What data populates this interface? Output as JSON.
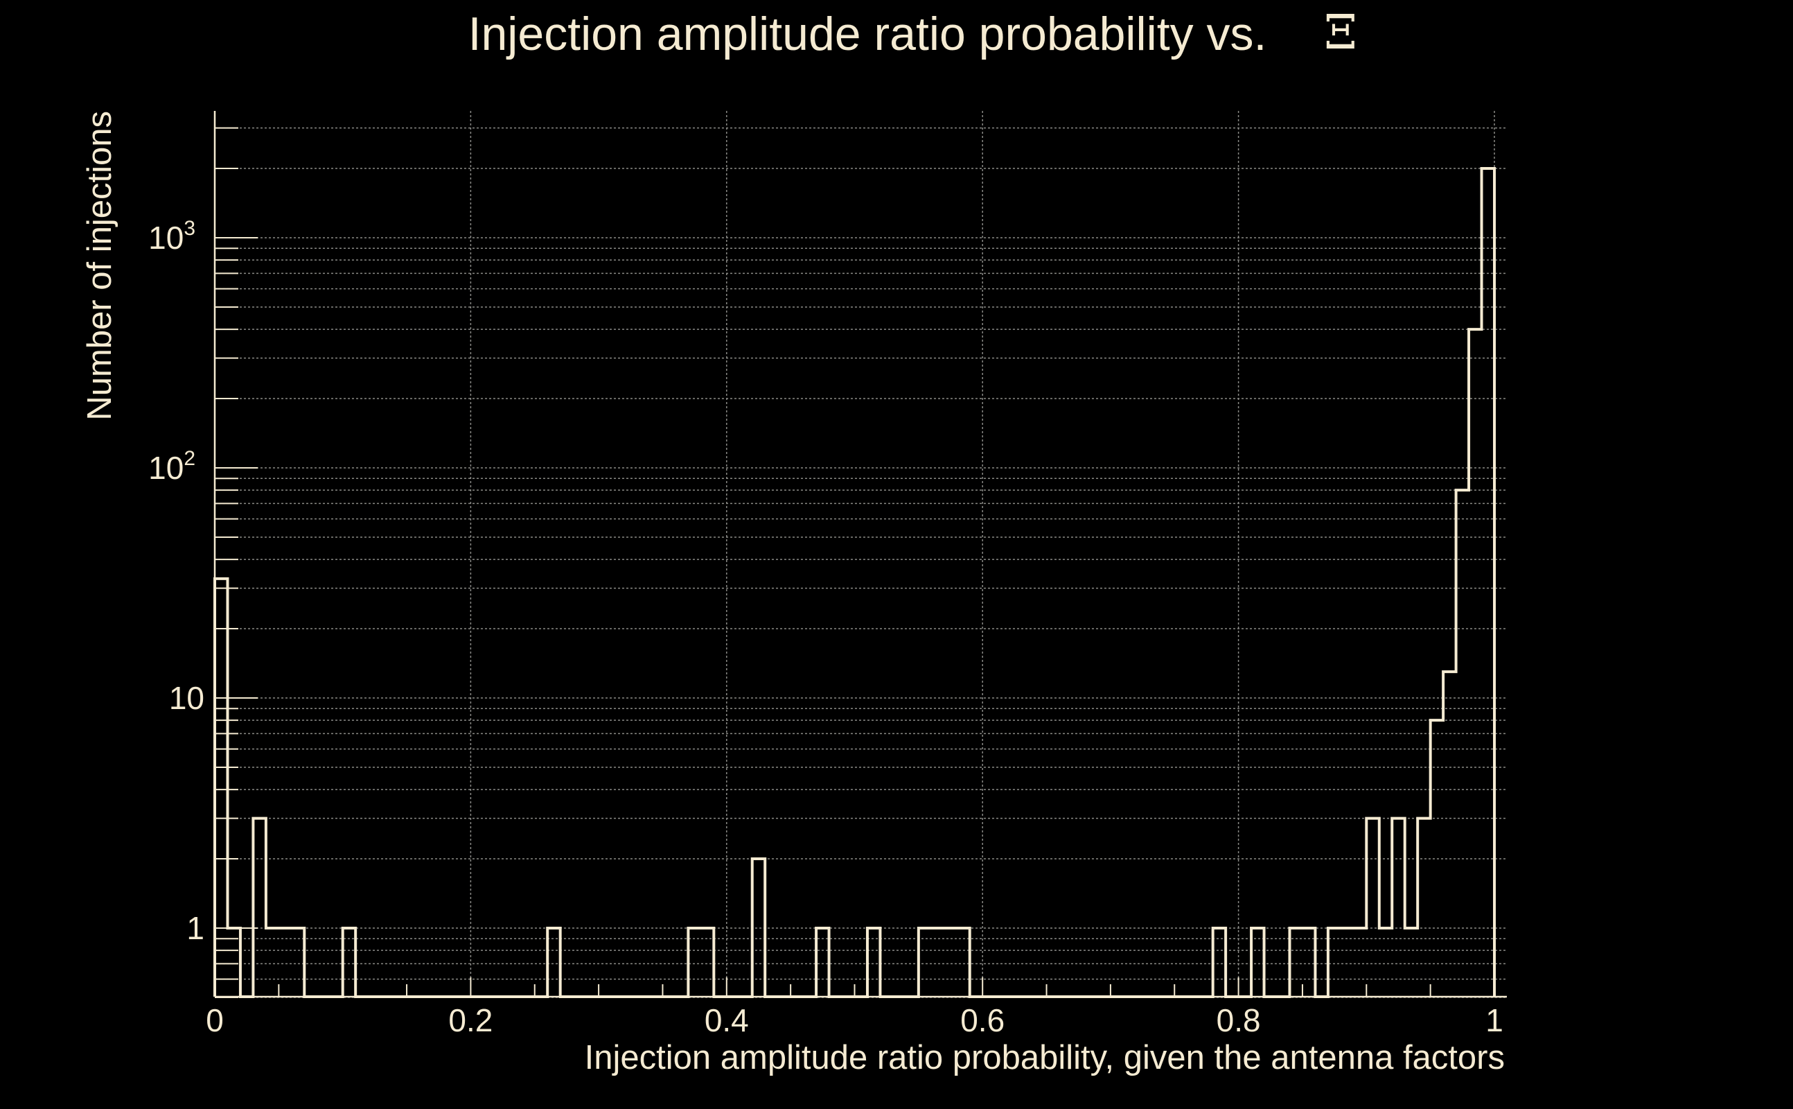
{
  "colors": {
    "background": "#000000",
    "foreground": "#f5ebd2",
    "grid": "#8a8a86"
  },
  "chart_data": {
    "type": "histogram",
    "title": "Injection amplitude ratio probability vs.",
    "title_symbol": "Ξ",
    "xlabel": "Injection amplitude ratio probability, given the antenna factors",
    "ylabel": "Number of injections",
    "xlim": [
      0,
      1.01
    ],
    "ylim": [
      0.5,
      3500
    ],
    "yscale": "log",
    "grid": true,
    "x_ticks": [
      {
        "value": 0,
        "label": "0"
      },
      {
        "value": 0.2,
        "label": "0.2"
      },
      {
        "value": 0.4,
        "label": "0.4"
      },
      {
        "value": 0.6,
        "label": "0.6"
      },
      {
        "value": 0.8,
        "label": "0.8"
      },
      {
        "value": 1,
        "label": "1"
      }
    ],
    "y_ticks": [
      {
        "value": 1,
        "base": "1",
        "exp": ""
      },
      {
        "value": 10,
        "base": "10",
        "exp": ""
      },
      {
        "value": 100,
        "base": "10",
        "exp": "2"
      },
      {
        "value": 1000,
        "base": "10",
        "exp": "3"
      }
    ],
    "bin_width": 0.01,
    "bins": [
      {
        "x": 0.0,
        "count": 33
      },
      {
        "x": 0.01,
        "count": 1
      },
      {
        "x": 0.03,
        "count": 3
      },
      {
        "x": 0.04,
        "count": 1
      },
      {
        "x": 0.05,
        "count": 1
      },
      {
        "x": 0.06,
        "count": 1
      },
      {
        "x": 0.1,
        "count": 1
      },
      {
        "x": 0.26,
        "count": 1
      },
      {
        "x": 0.37,
        "count": 1
      },
      {
        "x": 0.38,
        "count": 1
      },
      {
        "x": 0.42,
        "count": 2
      },
      {
        "x": 0.47,
        "count": 1
      },
      {
        "x": 0.51,
        "count": 1
      },
      {
        "x": 0.55,
        "count": 1
      },
      {
        "x": 0.56,
        "count": 1
      },
      {
        "x": 0.57,
        "count": 1
      },
      {
        "x": 0.58,
        "count": 1
      },
      {
        "x": 0.78,
        "count": 1
      },
      {
        "x": 0.81,
        "count": 1
      },
      {
        "x": 0.84,
        "count": 1
      },
      {
        "x": 0.85,
        "count": 1
      },
      {
        "x": 0.87,
        "count": 1
      },
      {
        "x": 0.88,
        "count": 1
      },
      {
        "x": 0.89,
        "count": 1
      },
      {
        "x": 0.9,
        "count": 3
      },
      {
        "x": 0.91,
        "count": 1
      },
      {
        "x": 0.92,
        "count": 3
      },
      {
        "x": 0.93,
        "count": 1
      },
      {
        "x": 0.94,
        "count": 3
      },
      {
        "x": 0.95,
        "count": 8
      },
      {
        "x": 0.96,
        "count": 13
      },
      {
        "x": 0.97,
        "count": 80
      },
      {
        "x": 0.98,
        "count": 400
      },
      {
        "x": 0.99,
        "count": 2000
      }
    ]
  }
}
